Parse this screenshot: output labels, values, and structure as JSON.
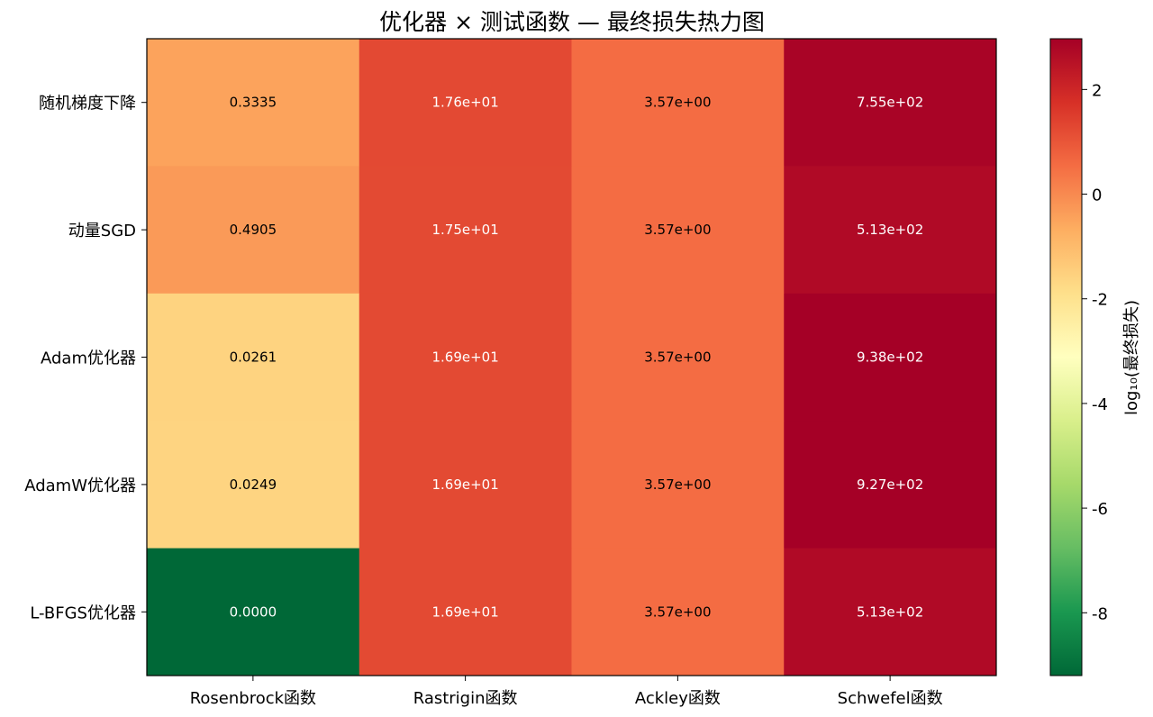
{
  "chart_data": {
    "type": "heatmap",
    "title": "优化器 × 测试函数 — 最终损失热力图",
    "rows": [
      "随机梯度下降",
      "动量SGD",
      "Adam优化器",
      "AdamW优化器",
      "L-BFGS优化器"
    ],
    "cols": [
      "Rosenbrock函数",
      "Rastrigin函数",
      "Ackley函数",
      "Schwefel函数"
    ],
    "values": [
      [
        0.3335,
        17.6,
        3.57,
        755
      ],
      [
        0.4905,
        17.5,
        3.57,
        513
      ],
      [
        0.0261,
        16.9,
        3.57,
        938
      ],
      [
        0.0249,
        16.9,
        3.57,
        927
      ],
      [
        0.0,
        16.9,
        3.57,
        513
      ]
    ],
    "log10_values": [
      [
        -0.48,
        1.25,
        0.55,
        2.88
      ],
      [
        -0.31,
        1.24,
        0.55,
        2.71
      ],
      [
        -1.58,
        1.23,
        0.55,
        2.97
      ],
      [
        -1.6,
        1.23,
        0.55,
        2.97
      ],
      [
        -9.2,
        1.23,
        0.55,
        2.71
      ]
    ],
    "labels": [
      [
        "0.3335",
        "1.76e+01",
        "3.57e+00",
        "7.55e+02"
      ],
      [
        "0.4905",
        "1.75e+01",
        "3.57e+00",
        "5.13e+02"
      ],
      [
        "0.0261",
        "1.69e+01",
        "3.57e+00",
        "9.38e+02"
      ],
      [
        "0.0249",
        "1.69e+01",
        "3.57e+00",
        "9.27e+02"
      ],
      [
        "0.0000",
        "1.69e+01",
        "3.57e+00",
        "5.13e+02"
      ]
    ],
    "colorbar": {
      "label": "log₁₀(最终损失)",
      "range": [
        -9.2,
        2.97
      ],
      "ticks": [
        2,
        0,
        -2,
        -4,
        -6,
        -8
      ],
      "colormap": "RdYlGn_r"
    }
  }
}
